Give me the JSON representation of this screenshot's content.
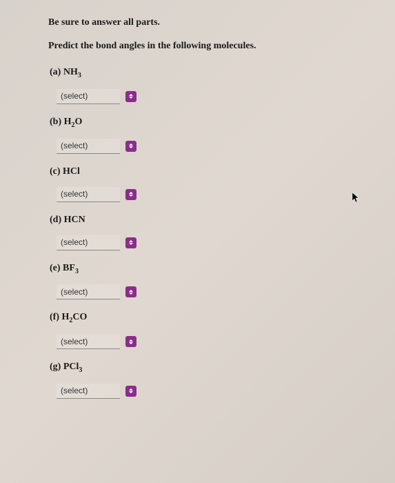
{
  "instruction": "Be sure to answer all parts.",
  "prompt": "Predict the bond angles in the following molecules.",
  "select_placeholder": "(select)",
  "questions": [
    {
      "letter": "(a)",
      "formula_parts": [
        {
          "t": "NH",
          "sub": false
        },
        {
          "t": "3",
          "sub": true
        }
      ]
    },
    {
      "letter": "(b)",
      "formula_parts": [
        {
          "t": "H",
          "sub": false
        },
        {
          "t": "2",
          "sub": true
        },
        {
          "t": "O",
          "sub": false
        }
      ]
    },
    {
      "letter": "(c)",
      "formula_parts": [
        {
          "t": "HCl",
          "sub": false
        }
      ]
    },
    {
      "letter": "(d)",
      "formula_parts": [
        {
          "t": "HCN",
          "sub": false
        }
      ]
    },
    {
      "letter": "(e)",
      "formula_parts": [
        {
          "t": "BF",
          "sub": false
        },
        {
          "t": "3",
          "sub": true
        }
      ]
    },
    {
      "letter": "(f)",
      "formula_parts": [
        {
          "t": "H",
          "sub": false
        },
        {
          "t": "2",
          "sub": true
        },
        {
          "t": "CO",
          "sub": false
        }
      ]
    },
    {
      "letter": "(g)",
      "formula_parts": [
        {
          "t": "PCl",
          "sub": false
        },
        {
          "t": "3",
          "sub": true
        }
      ]
    }
  ],
  "colors": {
    "select_handle_bg": "#8b2d8b",
    "background_start": "#d8d2cc",
    "background_end": "#d5cec6",
    "text": "#1a1a1a"
  }
}
